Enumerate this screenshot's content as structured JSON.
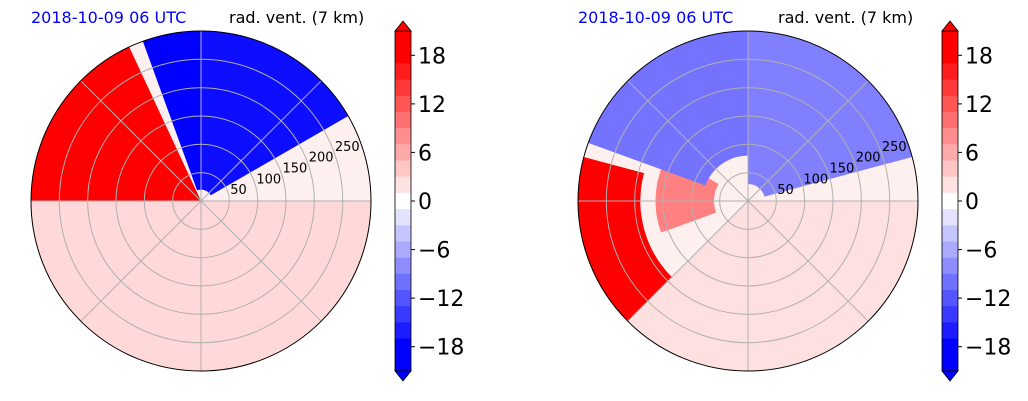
{
  "figure": {
    "panels": [
      {
        "date_label": "2018-10-09 06 UTC",
        "variable_label": "rad. vent. (7 km)"
      },
      {
        "date_label": "2018-10-09 06 UTC",
        "variable_label": "rad. vent. (7 km)"
      }
    ]
  },
  "colors": {
    "positive_max": "#ff0000",
    "negative_max": "#0000ff",
    "zero": "#ffffff",
    "grid": "#b0b0b0",
    "date_label": "#0000ff"
  },
  "chart_data": [
    {
      "type": "heatmap",
      "projection": "polar",
      "title": "rad. vent. (7 km)",
      "subtitle": "2018-10-09 06 UTC",
      "radial_ticks": [
        "50",
        "100",
        "150",
        "200",
        "250"
      ],
      "radial_tick_values": [
        50,
        100,
        150,
        200,
        250
      ],
      "radial_max": 300,
      "angular_grid_deg": [
        0,
        45,
        90,
        135,
        180,
        225,
        270,
        315
      ],
      "colorbar": {
        "ticks": [
          "18",
          "12",
          "6",
          "0",
          "−6",
          "−12",
          "−18"
        ],
        "tick_values": [
          18,
          12,
          6,
          0,
          -6,
          -12,
          -18
        ],
        "range": [
          -21,
          21
        ],
        "extend": "both"
      },
      "grid": true,
      "fields": [
        {
          "sign": "positive",
          "intensity": 1.0,
          "az_deg": [
            205,
            335
          ],
          "r_range": [
            0,
            300
          ]
        },
        {
          "sign": "positive",
          "intensity": 0.15,
          "az_deg": [
            90,
            270
          ],
          "r_range": [
            0,
            300
          ]
        },
        {
          "sign": "negative",
          "intensity": 1.0,
          "az_deg": [
            340,
            360
          ],
          "r_range": [
            20,
            300
          ]
        },
        {
          "sign": "negative",
          "intensity": 0.95,
          "az_deg": [
            0,
            60
          ],
          "r_range": [
            20,
            300
          ]
        }
      ]
    },
    {
      "type": "heatmap",
      "projection": "polar",
      "title": "rad. vent. (7 km)",
      "subtitle": "2018-10-09 06 UTC",
      "radial_ticks": [
        "50",
        "100",
        "150",
        "200",
        "250"
      ],
      "radial_tick_values": [
        50,
        100,
        150,
        200,
        250
      ],
      "radial_max": 300,
      "angular_grid_deg": [
        0,
        45,
        90,
        135,
        180,
        225,
        270,
        315
      ],
      "colorbar": {
        "ticks": [
          "18",
          "12",
          "6",
          "0",
          "−6",
          "−12",
          "−18"
        ],
        "tick_values": [
          18,
          12,
          6,
          0,
          -6,
          -12,
          -18
        ],
        "range": [
          -21,
          21
        ],
        "extend": "both"
      },
      "grid": true,
      "fields": [
        {
          "sign": "positive",
          "intensity": 1.0,
          "az_deg": [
            225,
            285
          ],
          "r_range": [
            190,
            300
          ]
        },
        {
          "sign": "positive",
          "intensity": 0.5,
          "az_deg": [
            250,
            300
          ],
          "r_range": [
            60,
            160
          ]
        },
        {
          "sign": "negative",
          "intensity": 0.55,
          "az_deg": [
            290,
            360
          ],
          "r_range": [
            80,
            300
          ]
        },
        {
          "sign": "negative",
          "intensity": 0.5,
          "az_deg": [
            0,
            75
          ],
          "r_range": [
            30,
            300
          ]
        },
        {
          "sign": "positive",
          "intensity": 0.12,
          "az_deg": [
            90,
            225
          ],
          "r_range": [
            0,
            300
          ]
        }
      ]
    }
  ]
}
